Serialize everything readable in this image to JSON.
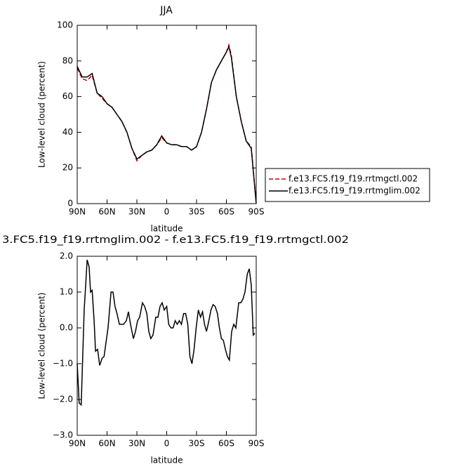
{
  "chart_data": [
    {
      "type": "line",
      "title": "JJA",
      "x_label": "latitude",
      "y_label": "Low-level cloud (percent)",
      "x": [
        90,
        85,
        80,
        75,
        70,
        65,
        60,
        55,
        50,
        45,
        40,
        35,
        30,
        25,
        20,
        15,
        10,
        5,
        0,
        -5,
        -10,
        -15,
        -20,
        -25,
        -30,
        -35,
        -40,
        -45,
        -50,
        -55,
        -60,
        -62.5,
        -65,
        -70,
        -75,
        -80,
        -85,
        -90
      ],
      "series": [
        {
          "name": "f.e13.FC5.f19_f19.rrtmgctl.002",
          "color": "#cc0000",
          "linestyle": "dashed",
          "values": [
            76,
            70,
            69,
            72,
            62,
            59,
            56,
            54,
            50,
            46,
            40,
            31,
            24,
            27,
            29,
            30,
            33,
            37,
            34,
            33,
            33,
            32,
            32,
            30,
            32,
            40,
            53,
            68,
            75,
            80,
            85,
            89,
            83,
            60,
            46,
            35,
            32,
            0
          ]
        },
        {
          "name": "f.e13.FC5.f19_f19.rrtmglim.002",
          "color": "#000000",
          "linestyle": "solid",
          "values": [
            77,
            71,
            71,
            73,
            62,
            60,
            56,
            54,
            50,
            46,
            40,
            31,
            25,
            27,
            29,
            30,
            33,
            38,
            34,
            33,
            33,
            32,
            32,
            30,
            32,
            40,
            53,
            68,
            75,
            80,
            85,
            88,
            82,
            60,
            46,
            35,
            31,
            0
          ]
        }
      ],
      "xlim": [
        90,
        -90
      ],
      "xticks": [
        {
          "value": 90,
          "label": "90N"
        },
        {
          "value": 60,
          "label": "60N"
        },
        {
          "value": 30,
          "label": "30N"
        },
        0,
        {
          "value": -30,
          "label": "30S"
        },
        {
          "value": -60,
          "label": "60S"
        },
        {
          "value": -90,
          "label": "90S"
        }
      ],
      "ylim": [
        0,
        100
      ],
      "yticks": [
        0,
        20,
        40,
        60,
        80,
        100
      ],
      "legend": "right"
    },
    {
      "type": "line",
      "title": "3.FC5.f19_f19.rrtmglim.002 - f.e13.FC5.f19_f19.rrtmgctl.002",
      "x_label": "latitude",
      "y_label": "Low-level cloud (percent)",
      "x": [
        90,
        88,
        86,
        83,
        80,
        78,
        76.6,
        75,
        73,
        71.6,
        69.5,
        67.4,
        65,
        63,
        61,
        59,
        56,
        54,
        52,
        50,
        47.6,
        45.5,
        43.4,
        40.6,
        38.5,
        36.4,
        33.5,
        31.4,
        29.3,
        27.2,
        24.4,
        22.2,
        20,
        18,
        16,
        13.8,
        11,
        8.8,
        6.7,
        4.6,
        2.5,
        0,
        -2,
        -4.2,
        -6.4,
        -8.5,
        -10.6,
        -12.7,
        -14.8,
        -17,
        -19,
        -21.2,
        -23.3,
        -25.4,
        -27.5,
        -29.6,
        -31.8,
        -34,
        -36,
        -38,
        -40,
        -42.4,
        -44.5,
        -46.6,
        -48.7,
        -51,
        -53,
        -55,
        -57,
        -59,
        -61,
        -63,
        -65.3,
        -67.4,
        -69.5,
        -72.4,
        -74.5,
        -76.6,
        -78.7,
        -81,
        -83,
        -85,
        -87,
        -88.6
      ],
      "series": [
        {
          "color": "#000000",
          "values": [
            -1.0,
            -2.1,
            -2.15,
            0.5,
            1.9,
            1.7,
            1.0,
            1.05,
            0.2,
            -0.65,
            -0.6,
            -1.05,
            -0.85,
            -0.8,
            -0.4,
            0.0,
            1.0,
            1.0,
            0.6,
            0.4,
            0.1,
            0.1,
            0.1,
            0.2,
            0.45,
            0.1,
            -0.3,
            -0.1,
            0.2,
            0.3,
            0.7,
            0.6,
            0.4,
            -0.1,
            -0.3,
            -0.2,
            0.3,
            0.3,
            0.6,
            0.7,
            0.5,
            0.6,
            0.1,
            0.0,
            0.0,
            0.2,
            0.1,
            0.2,
            0.1,
            0.4,
            0.4,
            0.1,
            -0.8,
            -1.0,
            -0.6,
            0.0,
            0.5,
            0.3,
            0.45,
            0.1,
            -0.1,
            0.2,
            0.5,
            0.65,
            0.6,
            0.4,
            0.0,
            -0.3,
            -0.35,
            -0.6,
            -0.8,
            -0.9,
            -0.1,
            0.1,
            0.0,
            0.7,
            0.7,
            0.8,
            1.0,
            1.5,
            1.65,
            1.2,
            -0.2,
            -0.15
          ]
        }
      ],
      "xlim": [
        90,
        -90
      ],
      "xticks": [
        {
          "value": 90,
          "label": "90N"
        },
        {
          "value": 60,
          "label": "60N"
        },
        {
          "value": 30,
          "label": "30N"
        },
        0,
        {
          "value": -30,
          "label": "30S"
        },
        {
          "value": -60,
          "label": "60S"
        },
        {
          "value": -90,
          "label": "90S"
        }
      ],
      "ylim": [
        -3,
        2
      ],
      "yticks": [
        {
          "value": -3,
          "label": "−3.0"
        },
        {
          "value": -2,
          "label": "−2.0"
        },
        {
          "value": -1,
          "label": "−1.0"
        },
        {
          "value": 0,
          "label": "0.0"
        },
        {
          "value": 1,
          "label": "1.0"
        },
        {
          "value": 2,
          "label": "2.0"
        }
      ]
    }
  ]
}
